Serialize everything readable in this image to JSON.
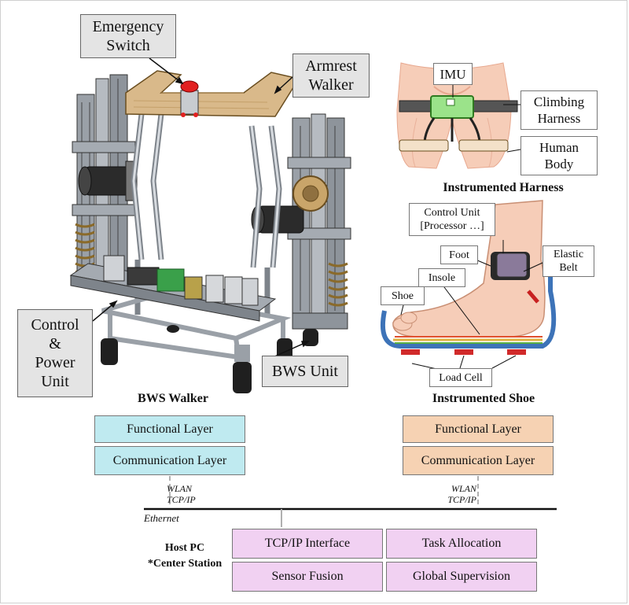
{
  "walker": {
    "labels": {
      "emergency_l1": "Emergency",
      "emergency_l2": "Switch",
      "armrest_l1": "Armrest",
      "armrest_l2": "Walker",
      "control_l1": "Control",
      "control_l2": "&",
      "control_l3": "Power",
      "control_l4": "Unit",
      "bws_unit": "BWS Unit"
    },
    "heading": "BWS Walker"
  },
  "harness": {
    "labels": {
      "imu": "IMU",
      "climbing_l1": "Climbing",
      "climbing_l2": "Harness",
      "human_l1": "Human",
      "human_l2": "Body"
    },
    "heading": "Instrumented Harness"
  },
  "shoe": {
    "labels": {
      "control_unit_l1": "Control Unit",
      "control_unit_l2": "[Processor …]",
      "foot": "Foot",
      "elastic_l1": "Elastic",
      "elastic_l2": "Belt",
      "insole": "Insole",
      "shoe": "Shoe",
      "load_cell": "Load Cell"
    },
    "heading": "Instrumented Shoe"
  },
  "layers": {
    "walker_functional": "Functional Layer",
    "walker_communication": "Communication Layer",
    "shoe_functional": "Functional Layer",
    "shoe_communication": "Communication Layer"
  },
  "network": {
    "walker_link_l1": "WLAN",
    "walker_link_l2": "TCP/IP",
    "shoe_link_l1": "WLAN",
    "shoe_link_l2": "TCP/IP",
    "ethernet": "Ethernet"
  },
  "host": {
    "label_l1": "Host PC",
    "label_l2": "*Center Station",
    "tcp_interface": "TCP/IP Interface",
    "task_allocation": "Task Allocation",
    "sensor_fusion": "Sensor Fusion",
    "global_supervision": "Global Supervision"
  },
  "colors": {
    "walker_layer": "#bfeaf0",
    "shoe_layer": "#f6d2b3",
    "host_module": "#f1d1f2",
    "wood": "#d9b98a",
    "frame_metal": "#8a8f96",
    "skin": "#f6cdb8",
    "harness_imu": "#9be38a"
  }
}
